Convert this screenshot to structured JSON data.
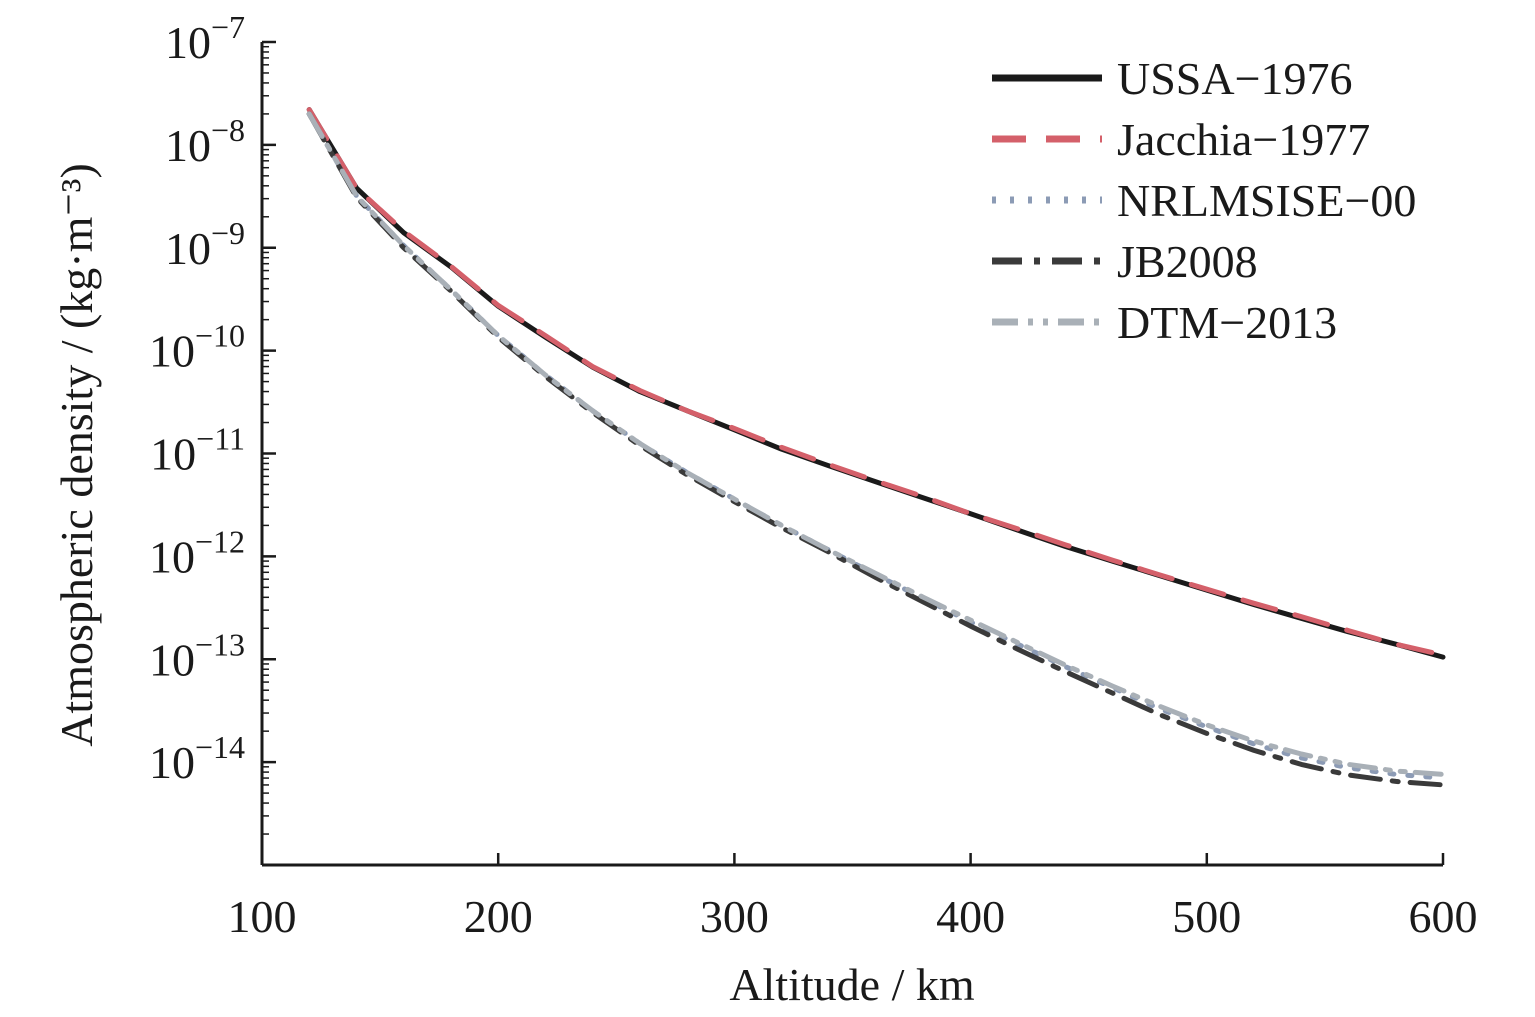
{
  "chart_data": {
    "type": "line",
    "title": "",
    "xlabel": "Altitude / km",
    "ylabel": "Atmospheric density / (kg·m⁻³)",
    "xlim": [
      100,
      600
    ],
    "ylim": [
      1e-15,
      1e-07
    ],
    "yscale": "log",
    "grid": false,
    "legend_position": "top-right",
    "x_ticks": [
      "100",
      "200",
      "300",
      "400",
      "500",
      "600"
    ],
    "y_ticks": [
      {
        "base": "10",
        "exp": "−7"
      },
      {
        "base": "10",
        "exp": "−8"
      },
      {
        "base": "10",
        "exp": "−9"
      },
      {
        "base": "10",
        "exp": "−10"
      },
      {
        "base": "10",
        "exp": "−11"
      },
      {
        "base": "10",
        "exp": "−12"
      },
      {
        "base": "10",
        "exp": "−13"
      },
      {
        "base": "10",
        "exp": "−14"
      }
    ],
    "x": [
      120,
      140,
      160,
      180,
      200,
      220,
      240,
      260,
      280,
      300,
      320,
      340,
      360,
      380,
      400,
      420,
      440,
      460,
      480,
      500,
      520,
      540,
      560,
      580,
      600
    ],
    "series": [
      {
        "name": "USSA−1976",
        "color": "#1a1a1a",
        "style": "solid",
        "values": [
          2.2e-08,
          3.8e-09,
          1.4e-09,
          6.5e-10,
          2.7e-10,
          1.35e-10,
          6.9e-11,
          4e-11,
          2.6e-11,
          1.7e-11,
          1.1e-11,
          7.6e-12,
          5.3e-12,
          3.7e-12,
          2.6e-12,
          1.8e-12,
          1.25e-12,
          9e-13,
          6.5e-13,
          4.7e-13,
          3.4e-13,
          2.5e-13,
          1.85e-13,
          1.4e-13,
          1.05e-13
        ]
      },
      {
        "name": "Jacchia−1977",
        "color": "#d4606a",
        "style": "dashed",
        "values": [
          2.2e-08,
          3.8e-09,
          1.45e-09,
          6.6e-10,
          2.75e-10,
          1.4e-10,
          7e-11,
          4.1e-11,
          2.6e-11,
          1.75e-11,
          1.15e-11,
          7.8e-12,
          5.4e-12,
          3.8e-12,
          2.6e-12,
          1.85e-12,
          1.3e-12,
          9.2e-13,
          6.6e-13,
          4.8e-13,
          3.5e-13,
          2.6e-13,
          1.9e-13,
          1.4e-13,
          1.1e-13
        ]
      },
      {
        "name": "NRLMSISE−00",
        "color": "#8c9bb5",
        "style": "dotted",
        "values": [
          2e-08,
          3.2e-09,
          1.05e-09,
          3.9e-10,
          1.4e-10,
          5.8e-11,
          2.6e-11,
          1.25e-11,
          6.5e-12,
          3.6e-12,
          2e-12,
          1.15e-12,
          6.6e-13,
          3.9e-13,
          2.3e-13,
          1.4e-13,
          8.5e-14,
          5.3e-14,
          3.3e-14,
          2.2e-14,
          1.5e-14,
          1.1e-14,
          8.8e-15,
          7.6e-15,
          7e-15
        ]
      },
      {
        "name": "JB2008",
        "color": "#3a3a3a",
        "style": "dashdot",
        "values": [
          2e-08,
          3.1e-09,
          1e-09,
          3.8e-10,
          1.35e-10,
          5.6e-11,
          2.5e-11,
          1.2e-11,
          6.2e-12,
          3.4e-12,
          1.9e-12,
          1.1e-12,
          6.2e-13,
          3.6e-13,
          2.1e-13,
          1.25e-13,
          7.6e-14,
          4.7e-14,
          2.9e-14,
          1.9e-14,
          1.3e-14,
          9.5e-15,
          7.5e-15,
          6.5e-15,
          6e-15
        ]
      },
      {
        "name": "DTM−2013",
        "color": "#a9b0b7",
        "style": "dashdotdot",
        "values": [
          2e-08,
          3.2e-09,
          1.05e-09,
          3.9e-10,
          1.4e-10,
          5.8e-11,
          2.6e-11,
          1.25e-11,
          6.5e-12,
          3.6e-12,
          2e-12,
          1.15e-12,
          6.8e-13,
          4e-13,
          2.4e-13,
          1.45e-13,
          8.8e-14,
          5.5e-14,
          3.5e-14,
          2.3e-14,
          1.6e-14,
          1.2e-14,
          9.5e-15,
          8.2e-15,
          7.6e-15
        ]
      }
    ]
  }
}
